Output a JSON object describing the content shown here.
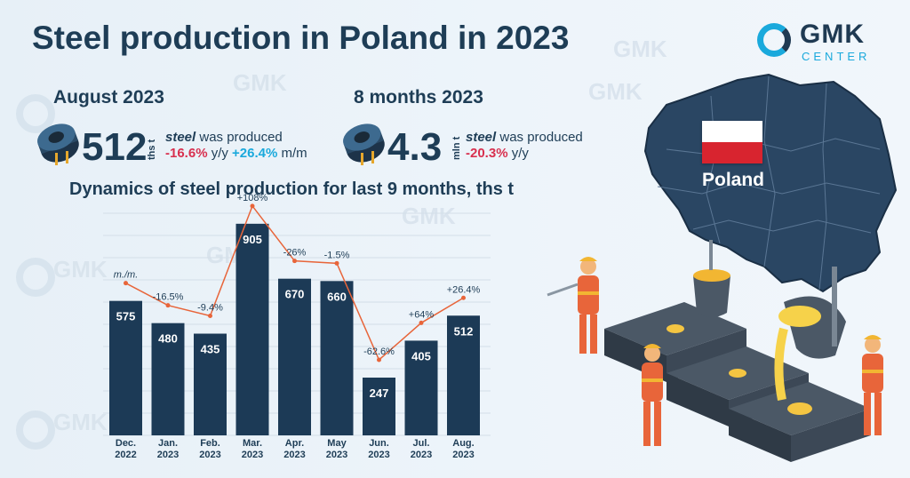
{
  "title": "Steel production in Poland in 2023",
  "logo": {
    "name": "GMK",
    "sub": "CENTER"
  },
  "colors": {
    "bar": "#1c3a56",
    "line": "#e8653a",
    "negative": "#d8304f",
    "positive": "#1aa9dc",
    "map": "#2a4663",
    "flag_red": "#d8242f"
  },
  "stat_month": {
    "heading": "August 2023",
    "value": "512",
    "unit": "ths t",
    "text_em": "steel",
    "text": "was produced",
    "yy": "-16.6%",
    "yy_label": "y/y",
    "mm": "+26.4%",
    "mm_label": "m/m",
    "icon": "steel-coil-icon"
  },
  "stat_period": {
    "heading": "8 months 2023",
    "value": "4.3",
    "unit": "mln t",
    "text_em": "steel",
    "text": "was produced",
    "yy": "-20.3%",
    "yy_label": "y/y",
    "icon": "steel-coil-icon"
  },
  "map": {
    "label": "Poland"
  },
  "chart_data": {
    "type": "bar",
    "title": "Dynamics of steel production for last 9 months, ths t",
    "categories": [
      "Dec.\n2022",
      "Jan.\n2023",
      "Feb.\n2023",
      "Mar.\n2023",
      "Apr.\n2023",
      "May\n2023",
      "Jun.\n2023",
      "Jul.\n2023",
      "Aug.\n2023"
    ],
    "values": [
      575,
      480,
      435,
      905,
      670,
      660,
      247,
      405,
      512
    ],
    "line_label": "m./m.",
    "change_labels": [
      "",
      "-16.5%",
      "-9.4%",
      "+108%",
      "-26%",
      "-1.5%",
      "-62.6%",
      "+64%",
      "+26.4%"
    ],
    "change_values": [
      null,
      -16.5,
      -9.4,
      108,
      -26,
      -1.5,
      -62.6,
      64,
      26.4
    ],
    "ylim": [
      0,
      950
    ],
    "grid": true
  }
}
